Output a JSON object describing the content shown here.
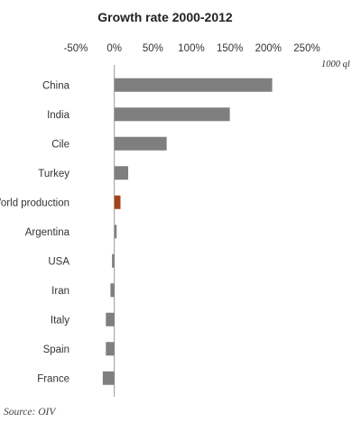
{
  "chart_data": {
    "type": "bar",
    "orientation": "horizontal",
    "title": "Growth rate 2000-2012",
    "unit_label": "1000 ql",
    "source": "Source: OIV",
    "categories": [
      "China",
      "India",
      "Cile",
      "Turkey",
      "World production",
      "Argentina",
      "USA",
      "Iran",
      "Italy",
      "Spain",
      "France"
    ],
    "values": [
      205,
      150,
      68,
      18,
      8,
      3,
      -3,
      -5,
      -11,
      -11,
      -15
    ],
    "bar_colors": [
      "#7f7f7f",
      "#7f7f7f",
      "#7f7f7f",
      "#7f7f7f",
      "#a5441c",
      "#7f7f7f",
      "#7f7f7f",
      "#7f7f7f",
      "#7f7f7f",
      "#7f7f7f",
      "#7f7f7f"
    ],
    "xlim": [
      -50,
      250
    ],
    "xticks": [
      -50,
      0,
      50,
      100,
      150,
      200,
      250
    ],
    "xtick_labels": [
      "-50%",
      "0%",
      "50%",
      "100%",
      "150%",
      "200%",
      "250%"
    ],
    "x_axis_position": "top",
    "grid": false,
    "legend": "none"
  }
}
